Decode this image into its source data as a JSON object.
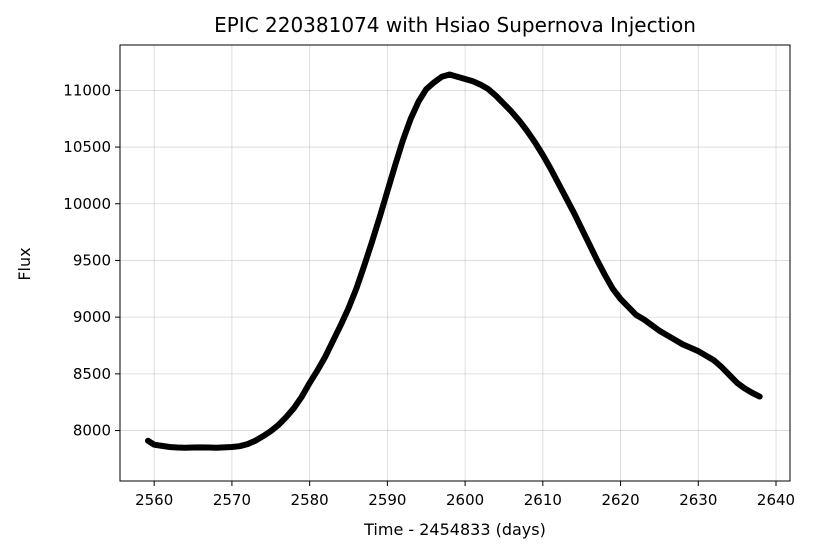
{
  "chart_data": {
    "type": "line",
    "title": "EPIC 220381074 with Hsiao Supernova Injection",
    "xlabel": "Time - 2454833 (days)",
    "ylabel": "Flux",
    "xlim": [
      2555.6,
      2641.8
    ],
    "ylim": [
      7555,
      11400
    ],
    "xticks": [
      2560,
      2570,
      2580,
      2590,
      2600,
      2610,
      2620,
      2630,
      2640
    ],
    "yticks": [
      8000,
      8500,
      9000,
      9500,
      10000,
      10500,
      11000
    ],
    "grid": true,
    "legend": "none",
    "series": [
      {
        "color": "#000000",
        "x": [
          2559.2,
          2560,
          2561,
          2562,
          2563,
          2564,
          2565,
          2566,
          2567,
          2568,
          2569,
          2570,
          2571,
          2572,
          2573,
          2574,
          2575,
          2576,
          2577,
          2578,
          2579,
          2580,
          2581,
          2582,
          2583,
          2584,
          2585,
          2586,
          2587,
          2588,
          2589,
          2590,
          2591,
          2592,
          2593,
          2594,
          2595,
          2596,
          2597,
          2598,
          2599,
          2600,
          2601,
          2602,
          2603,
          2604,
          2605,
          2606,
          2607,
          2608,
          2609,
          2610,
          2611,
          2612,
          2613,
          2614,
          2615,
          2616,
          2617,
          2618,
          2619,
          2620,
          2621,
          2622,
          2623,
          2624,
          2625,
          2626,
          2627,
          2628,
          2629,
          2630,
          2631,
          2632,
          2633,
          2634,
          2635,
          2636,
          2637,
          2637.9
        ],
        "y": [
          7910,
          7875,
          7865,
          7855,
          7850,
          7848,
          7850,
          7852,
          7850,
          7848,
          7852,
          7855,
          7862,
          7880,
          7910,
          7950,
          7995,
          8050,
          8120,
          8200,
          8300,
          8420,
          8530,
          8650,
          8790,
          8930,
          9080,
          9250,
          9450,
          9660,
          9880,
          10110,
          10340,
          10560,
          10750,
          10900,
          11010,
          11070,
          11120,
          11140,
          11120,
          11100,
          11080,
          11050,
          11010,
          10950,
          10880,
          10810,
          10730,
          10640,
          10540,
          10430,
          10310,
          10180,
          10050,
          9920,
          9780,
          9640,
          9500,
          9370,
          9250,
          9160,
          9090,
          9020,
          8980,
          8930,
          8880,
          8840,
          8800,
          8760,
          8730,
          8700,
          8660,
          8620,
          8560,
          8490,
          8420,
          8370,
          8330,
          8300
        ]
      }
    ]
  }
}
